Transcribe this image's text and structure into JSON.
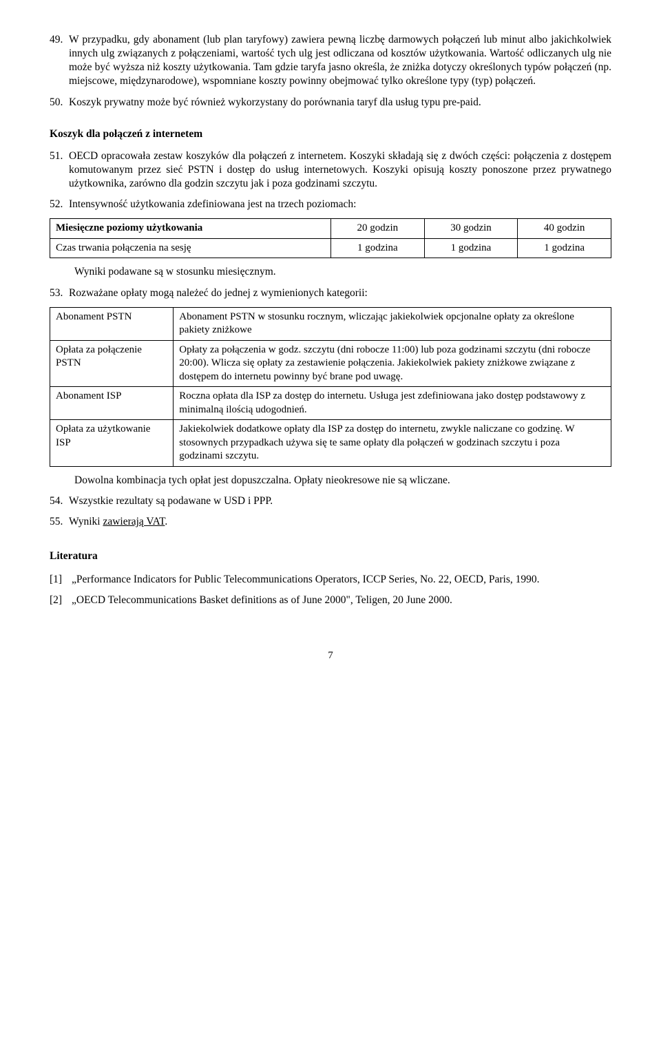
{
  "items": {
    "n49": "49.",
    "b49": "W przypadku, gdy abonament (lub plan taryfowy) zawiera pewną liczbę darmowych połączeń lub minut albo jakichkolwiek innych ulg związanych z połączeniami, wartość tych ulg jest odliczana od kosztów użytkowania. Wartość odliczanych ulg nie może być wyższa niż koszty użytkowania. Tam gdzie taryfa jasno określa, że zniżka dotyczy określonych typów połączeń (np. miejscowe, międzynarodowe), wspomniane koszty powinny obejmować tylko określone typy (typ) połączeń.",
    "n50": "50.",
    "b50": "Koszyk prywatny może być również wykorzystany do porównania taryf dla usług typu pre-paid.",
    "heading1": "Koszyk dla połączeń z internetem",
    "n51": "51.",
    "b51": "OECD opracowała zestaw koszyków dla połączeń z internetem. Koszyki składają się z dwóch części: połączenia z dostępem komutowanym przez sieć PSTN i dostęp do usług internetowych. Koszyki opisują koszty ponoszone przez prywatnego użytkownika, zarówno dla godzin szczytu jak i poza godzinami szczytu.",
    "n52": "52.",
    "b52": "Intensywność użytkowania zdefiniowana jest na trzech poziomach:",
    "t1": {
      "r1c1": "Miesięczne poziomy użytkowania",
      "r1c2": "20 godzin",
      "r1c3": "30 godzin",
      "r1c4": "40 godzin",
      "r2c1": "Czas trwania połączenia na sesję",
      "r2c2": "1 godzina",
      "r2c3": "1 godzina",
      "r2c4": "1 godzina"
    },
    "afterT1": "Wyniki podawane są w stosunku miesięcznym.",
    "n53": "53.",
    "b53": "Rozważane opłaty mogą należeć do jednej z wymienionych kategorii:",
    "t2": {
      "r1c1": "Abonament PSTN",
      "r1c2": "Abonament PSTN w stosunku rocznym, wliczając jakiekolwiek opcjonalne opłaty za określone pakiety zniżkowe",
      "r2c1": "Opłata za połączenie PSTN",
      "r2c2": "Opłaty za połączenia w godz. szczytu (dni robocze 11:00) lub poza godzinami szczytu (dni robocze 20:00). Wlicza się opłaty za zestawienie połączenia. Jakiekolwiek pakiety zniżkowe związane z dostępem do internetu powinny być brane pod uwagę.",
      "r3c1": "Abonament ISP",
      "r3c2": "Roczna opłata dla ISP za dostęp do internetu. Usługa jest zdefiniowana jako dostęp podstawowy z minimalną ilością udogodnień.",
      "r4c1": "Opłata za użytkowanie ISP",
      "r4c2": "Jakiekolwiek dodatkowe opłaty dla ISP za dostęp do internetu, zwykle naliczane co godzinę. W stosownych przypadkach używa się te same opłaty dla połączeń w godzinach szczytu i poza godzinami szczytu."
    },
    "afterT2": "Dowolna kombinacja tych opłat jest dopuszczalna. Opłaty nieokresowe nie są wliczane.",
    "n54": "54.",
    "b54": "Wszystkie rezultaty są podawane w USD i PPP.",
    "n55": "55.",
    "b55a": "Wyniki ",
    "b55u": "zawierają VAT",
    "b55b": ".",
    "litHeading": "Literatura",
    "ref1n": "[1]",
    "ref1": "„Performance Indicators for Public Telecommunications Operators, ICCP Series, No. 22, OECD, Paris, 1990.",
    "ref2n": "[2]",
    "ref2": "„OECD Telecommunications Basket definitions as of June 2000\", Teligen, 20 June 2000.",
    "pageNum": "7"
  }
}
